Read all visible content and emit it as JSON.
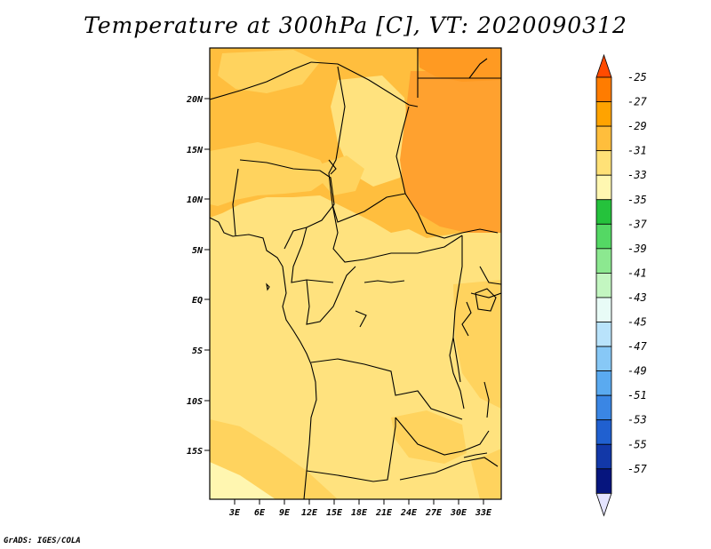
{
  "title": "Temperature at 300hPa [C], VT: 2020090312",
  "credit": "GrADS: IGES/COLA",
  "map": {
    "lat_labels": [
      "20N",
      "15N",
      "10N",
      "5N",
      "EQ",
      "5S",
      "10S",
      "15S"
    ],
    "lon_labels": [
      "3E",
      "6E",
      "9E",
      "12E",
      "15E",
      "18E",
      "21E",
      "24E",
      "27E",
      "30E",
      "33E"
    ]
  },
  "colorbar": {
    "labels": [
      "-25",
      "-27",
      "-29",
      "-31",
      "-33",
      "-35",
      "-37",
      "-39",
      "-41",
      "-43",
      "-45",
      "-47",
      "-49",
      "-51",
      "-53",
      "-55",
      "-57"
    ],
    "colors": [
      "#ff4b00",
      "#ff7c00",
      "#ffa300",
      "#ffbe3c",
      "#ffe177",
      "#fff7b1",
      "#25c23c",
      "#54d864",
      "#8ce890",
      "#c3f6c1",
      "#e8fbf6",
      "#b9e3fb",
      "#87c8f6",
      "#5aaaf0",
      "#3a86e4",
      "#2060d0",
      "#1238a8",
      "#06157e",
      "#e4e4ff"
    ]
  },
  "colors": {
    "c25_27": "#ffa12f",
    "c27_29": "#ffbe3e",
    "c29_31": "#ffd35e",
    "c31_33": "#ffe27e",
    "c33_35": "#fff6b0"
  }
}
